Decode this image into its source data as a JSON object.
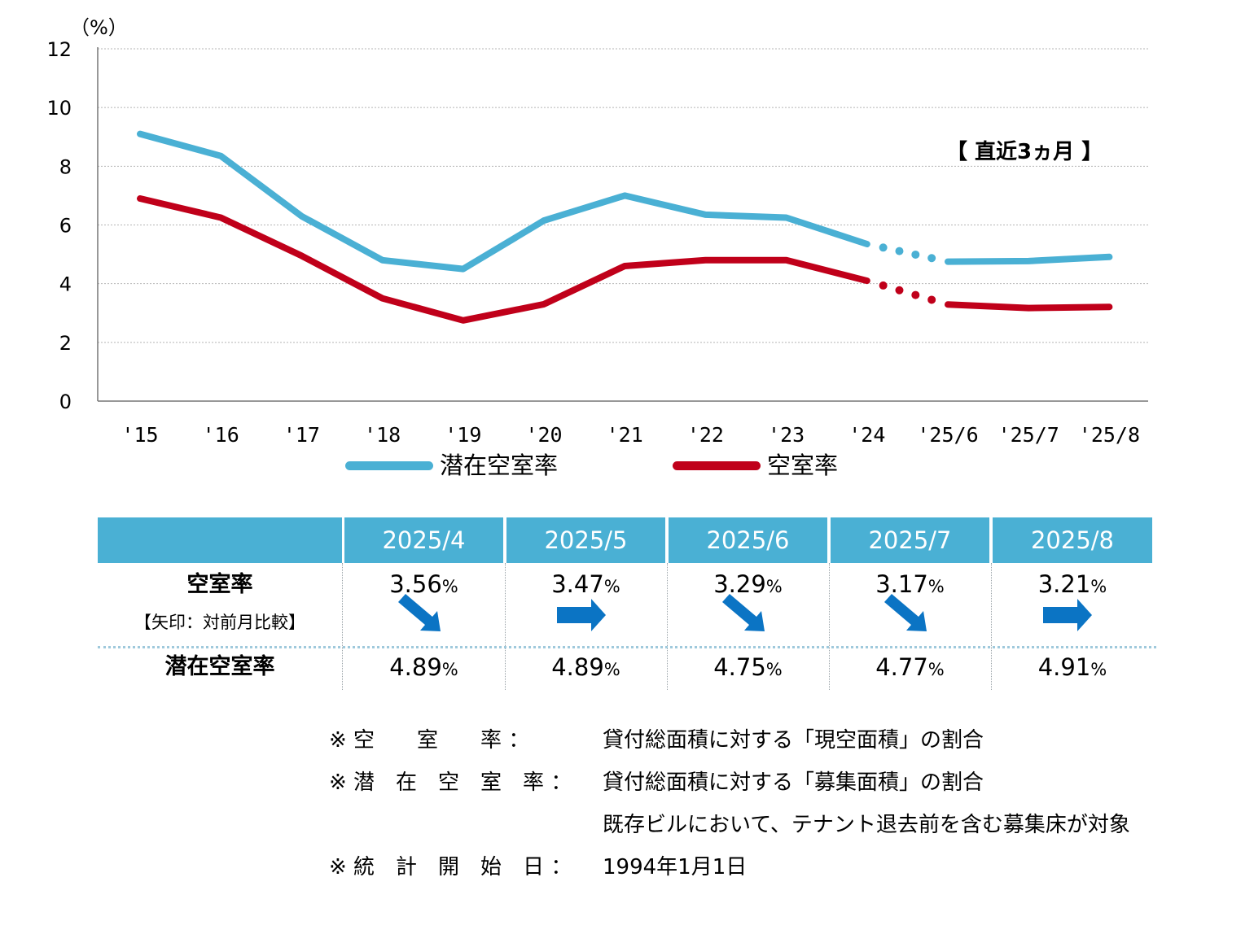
{
  "chart_data": {
    "type": "line",
    "unit_label": "（%）",
    "ylim": [
      0,
      12
    ],
    "y_ticks": [
      0,
      2,
      4,
      6,
      8,
      10,
      12
    ],
    "grid": true,
    "categories": [
      "'15",
      "'16",
      "'17",
      "'18",
      "'19",
      "'20",
      "'21",
      "'22",
      "'23",
      "'24",
      "'25/6",
      "'25/7",
      "'25/8"
    ],
    "series": [
      {
        "name": "潜在空室率",
        "color": "#4ab0d4",
        "values": [
          9.1,
          8.35,
          6.3,
          4.8,
          4.5,
          6.15,
          7.0,
          6.35,
          6.25,
          5.35,
          4.75,
          4.77,
          4.91
        ]
      },
      {
        "name": "空室率",
        "color": "#c0001a",
        "values": [
          6.9,
          6.25,
          4.95,
          3.5,
          2.75,
          3.3,
          4.6,
          4.8,
          4.8,
          4.1,
          3.29,
          3.17,
          3.21
        ]
      }
    ],
    "annotation": "【 直近3ヵ月 】"
  },
  "table": {
    "months": [
      "2025/4",
      "2025/5",
      "2025/6",
      "2025/7",
      "2025/8"
    ],
    "vacancy_label": "空室率",
    "arrow_note": "【矢印：対前月比較】",
    "potential_label": "潜在空室率",
    "vacancy_values": [
      "3.56",
      "3.47",
      "3.29",
      "3.17",
      "3.21"
    ],
    "potential_values": [
      "4.89",
      "4.89",
      "4.75",
      "4.77",
      "4.91"
    ],
    "percent_sign": "%",
    "arrows": [
      "down-right-arrow",
      "right-arrow",
      "down-right-arrow",
      "down-right-arrow",
      "right-arrow"
    ],
    "arrow_color": "#0b74c4"
  },
  "notes": [
    {
      "label": "※ 空　　室　　率 ：",
      "text": "貸付総面積に対する「現空面積」の割合"
    },
    {
      "label": "※ 潜　在　空　室　率 ：",
      "text": "貸付総面積に対する「募集面積」の割合"
    },
    {
      "label": "",
      "text": "既存ビルにおいて、テナント退去前を含む募集床が対象"
    },
    {
      "label": "※ 統　計　開　始　日 ：",
      "text": "1994年1月1日"
    }
  ]
}
